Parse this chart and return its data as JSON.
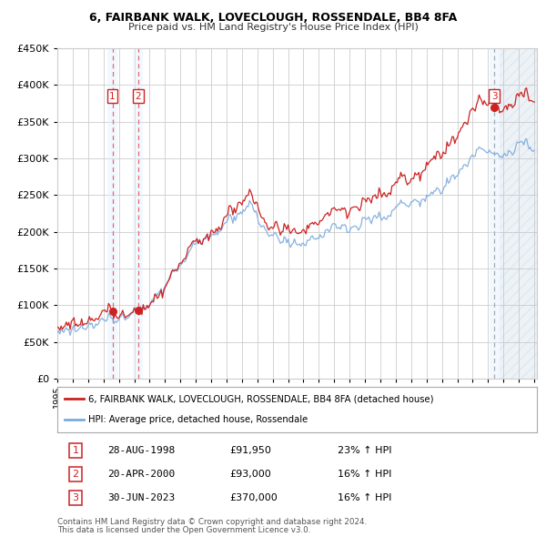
{
  "title": "6, FAIRBANK WALK, LOVECLOUGH, ROSSENDALE, BB4 8FA",
  "subtitle": "Price paid vs. HM Land Registry's House Price Index (HPI)",
  "ylim": [
    0,
    450000
  ],
  "yticks": [
    0,
    50000,
    100000,
    150000,
    200000,
    250000,
    300000,
    350000,
    400000,
    450000
  ],
  "sale_prices": [
    91950,
    93000,
    370000
  ],
  "sale_labels": [
    "1",
    "2",
    "3"
  ],
  "legend_line1": "6, FAIRBANK WALK, LOVECLOUGH, ROSSENDALE, BB4 8FA (detached house)",
  "legend_line2": "HPI: Average price, detached house, Rossendale",
  "table_rows": [
    [
      "1",
      "28-AUG-1998",
      "£91,950",
      "23% ↑ HPI"
    ],
    [
      "2",
      "20-APR-2000",
      "£93,000",
      "16% ↑ HPI"
    ],
    [
      "3",
      "30-JUN-2023",
      "£370,000",
      "16% ↑ HPI"
    ]
  ],
  "footnote1": "Contains HM Land Registry data © Crown copyright and database right 2024.",
  "footnote2": "This data is licensed under the Open Government Licence v3.0.",
  "hpi_color": "#7aaadd",
  "property_color": "#cc2222",
  "bg_color": "#ffffff",
  "grid_color": "#cccccc",
  "sale_vline_color": "#ee6666",
  "sale_highlight_color": "#ddeeff",
  "hatch_color": "#bbccdd"
}
